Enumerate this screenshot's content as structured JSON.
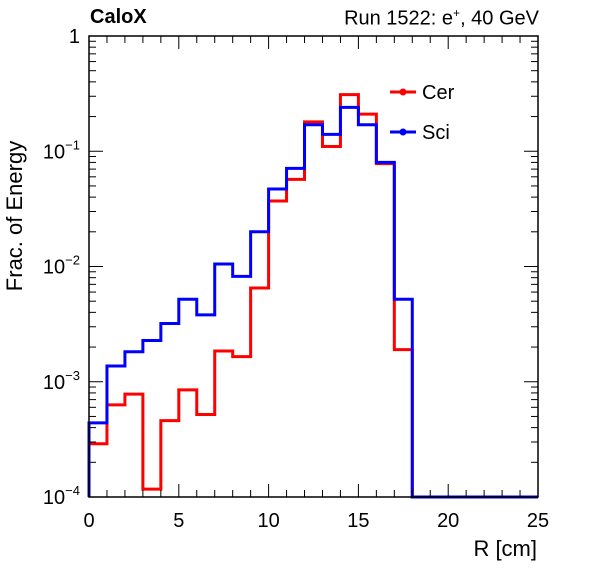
{
  "header": {
    "experiment": "CaloX",
    "run_prefix": "Run 1522: e",
    "run_charge": "+",
    "run_suffix": ", 40 GeV"
  },
  "chart_data": {
    "type": "step-histogram",
    "xlabel": "R [cm]",
    "ylabel": "Frac. of Energy",
    "xlim": [
      0,
      25
    ],
    "ylim": [
      0.0001,
      1
    ],
    "yscale": "log",
    "x_ticks": [
      0,
      5,
      10,
      15,
      20,
      25
    ],
    "y_tick_labels": [
      {
        "value": 1,
        "base": "1",
        "exp": ""
      },
      {
        "value": 0.1,
        "base": "10",
        "exp": "−1"
      },
      {
        "value": 0.01,
        "base": "10",
        "exp": "−2"
      },
      {
        "value": 0.001,
        "base": "10",
        "exp": "−3"
      },
      {
        "value": 0.0001,
        "base": "10",
        "exp": "−4"
      }
    ],
    "bin_edges": [
      0,
      1,
      2,
      3,
      4,
      5,
      6,
      7,
      8,
      9,
      10,
      11,
      12,
      13,
      14,
      15,
      16,
      17,
      18,
      19,
      20,
      21,
      22,
      23,
      24,
      25
    ],
    "series": [
      {
        "name": "Cer",
        "color": "#ff0000",
        "values": [
          0.00029,
          0.00063,
          0.00078,
          0.000117,
          0.00046,
          0.00085,
          0.00052,
          0.00185,
          0.00165,
          0.0065,
          0.037,
          0.057,
          0.18,
          0.11,
          0.31,
          0.21,
          0.078,
          0.0019,
          0,
          0,
          0,
          0,
          0,
          0,
          0
        ]
      },
      {
        "name": "Sci",
        "color": "#0000ff",
        "values": [
          0.00044,
          0.00137,
          0.00182,
          0.00228,
          0.0032,
          0.0052,
          0.0038,
          0.0105,
          0.0082,
          0.02,
          0.047,
          0.071,
          0.17,
          0.14,
          0.24,
          0.17,
          0.08,
          0.0052,
          0,
          0,
          0,
          0,
          0,
          0,
          0
        ]
      }
    ],
    "legend_position": "top-right"
  }
}
